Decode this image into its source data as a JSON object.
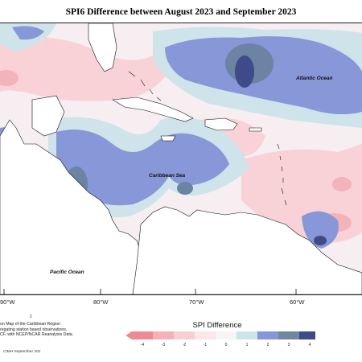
{
  "title": "SPI6 Difference between August 2023 and September 2023",
  "map": {
    "labels": {
      "atlantic": "Atlantic Ocean",
      "caribbean": "Caribbean Sea",
      "pacific": "Pacific Ocean"
    },
    "longitude_ticks": [
      "90°W",
      "80°W",
      "70°W",
      "60°W"
    ]
  },
  "legend": {
    "title": "SPI Difference",
    "ticks": [
      "-4",
      "-3",
      "-2",
      "-1",
      "0",
      "1",
      "2",
      "3",
      "4"
    ],
    "colors": [
      "#f08a92",
      "#f5b1b5",
      "#f9cfd3",
      "#fce6e8",
      "#f5f5f5",
      "#cfe4ea",
      "#8696d8",
      "#6f88a0",
      "#3f4a8a"
    ]
  },
  "notes": {
    "line1": "on Map of the Caribbean Region",
    "line2": "regating station based observations,",
    "line3": "CF, with NCEP/NCAR Reanalysis Data.",
    "footnote_mark": "2"
  },
  "copyright": "CIMH September 202"
}
